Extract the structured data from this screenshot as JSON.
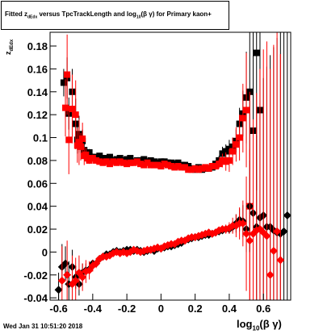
{
  "title": "Fitted z_dEdx versus TpcTrackLength and log10(βγ) for Primary kaon+",
  "title_parts": {
    "pre": "Fitted  z",
    "sub1": "dEdx",
    "mid": " versus TpcTrackLength and log",
    "sub2": "10",
    "post": "(β γ) for Primary kaon+"
  },
  "footer": "Wed Jan 31 10:51:20 2018",
  "axes": {
    "x_title_pre": "log",
    "x_title_sub": "10",
    "x_title_post": "(β γ)",
    "y_title": "z_dEdx",
    "y_title_pre": "z",
    "y_title_sub": "dEdx"
  },
  "colors": {
    "series_black": "#000000",
    "series_red": "#ff0000",
    "frame": "#000000"
  },
  "chart_data": {
    "type": "scatter",
    "xlim": [
      -0.65,
      0.76
    ],
    "ylim": [
      -0.042,
      0.192
    ],
    "x_ticks": [
      -0.6,
      -0.4,
      -0.2,
      0,
      0.2,
      0.4,
      0.6
    ],
    "x_tick_labels": [
      "-0.6",
      "-0.4",
      "-0.2",
      "0",
      "0.2",
      "0.4",
      "0.6"
    ],
    "y_ticks": [
      -0.04,
      -0.02,
      0,
      0.02,
      0.04,
      0.06,
      0.08,
      0.1,
      0.12,
      0.14,
      0.16,
      0.18
    ],
    "y_tick_labels": [
      "-0.04",
      "-0.02",
      "0",
      "0.02",
      "0.04",
      "0.06",
      "0.08",
      "0.1",
      "0.12",
      "0.14",
      "0.16",
      "0.18"
    ],
    "grid": false,
    "series": [
      {
        "color": "#000000",
        "marker": "square",
        "x": [
          -0.57,
          -0.55,
          -0.54,
          -0.52,
          -0.5,
          -0.49,
          -0.48,
          -0.47,
          -0.46,
          -0.45,
          -0.44,
          -0.43,
          -0.42,
          -0.4,
          -0.38,
          -0.36,
          -0.34,
          -0.32,
          -0.3,
          -0.28,
          -0.26,
          -0.24,
          -0.22,
          -0.2,
          -0.18,
          -0.16,
          -0.14,
          -0.12,
          -0.1,
          -0.08,
          -0.06,
          -0.04,
          -0.02,
          0,
          0.02,
          0.04,
          0.06,
          0.08,
          0.1,
          0.12,
          0.14,
          0.16,
          0.18,
          0.2,
          0.22,
          0.24,
          0.26,
          0.28,
          0.3,
          0.32,
          0.34,
          0.36,
          0.38,
          0.4,
          0.42,
          0.44,
          0.46,
          0.48,
          0.5,
          0.52,
          0.54,
          0.56,
          0.58
        ],
        "y": [
          0.148,
          0.152,
          0.121,
          0.14,
          0.112,
          0.098,
          0.103,
          0.094,
          0.097,
          0.089,
          0.087,
          0.085,
          0.087,
          0.083,
          0.083,
          0.084,
          0.082,
          0.082,
          0.083,
          0.08,
          0.081,
          0.082,
          0.08,
          0.081,
          0.082,
          0.079,
          0.08,
          0.08,
          0.081,
          0.079,
          0.08,
          0.079,
          0.078,
          0.079,
          0.079,
          0.078,
          0.078,
          0.077,
          0.078,
          0.076,
          0.076,
          0.075,
          0.073,
          0.072,
          0.074,
          0.072,
          0.073,
          0.073,
          0.074,
          0.077,
          0.08,
          0.086,
          0.088,
          0.09,
          0.092,
          0.097,
          0.112,
          0.121,
          0.135,
          0.14,
          0.106,
          0.174,
          0.124
        ],
        "err": [
          0.012,
          0.018,
          0.014,
          0.02,
          0.022,
          0.012,
          0.016,
          0.008,
          0.01,
          0.006,
          0.004,
          0.003,
          0.003,
          0.003,
          0.002,
          0.002,
          0.002,
          0.002,
          0.002,
          0.002,
          0.002,
          0.002,
          0.002,
          0.002,
          0.002,
          0.002,
          0.002,
          0.002,
          0.002,
          0.002,
          0.002,
          0.002,
          0.002,
          0.002,
          0.002,
          0.002,
          0.002,
          0.002,
          0.002,
          0.002,
          0.002,
          0.002,
          0.002,
          0.002,
          0.002,
          0.002,
          0.002,
          0.002,
          0.002,
          0.003,
          0.004,
          0.006,
          0.006,
          0.008,
          0.008,
          0.01,
          0.014,
          0.02,
          0.04,
          0.06,
          0.09,
          0.12,
          0.16
        ]
      },
      {
        "color": "#ff0000",
        "marker": "square",
        "x": [
          -0.56,
          -0.55,
          -0.54,
          -0.52,
          -0.5,
          -0.49,
          -0.48,
          -0.47,
          -0.46,
          -0.45,
          -0.44,
          -0.43,
          -0.42,
          -0.4,
          -0.38,
          -0.36,
          -0.34,
          -0.32,
          -0.3,
          -0.28,
          -0.26,
          -0.24,
          -0.22,
          -0.2,
          -0.18,
          -0.16,
          -0.14,
          -0.12,
          -0.1,
          -0.08,
          -0.06,
          -0.04,
          -0.02,
          0,
          0.02,
          0.04,
          0.06,
          0.08,
          0.1,
          0.12,
          0.14,
          0.16,
          0.18,
          0.2,
          0.22,
          0.24,
          0.26,
          0.28,
          0.3,
          0.32,
          0.34,
          0.36,
          0.38,
          0.4,
          0.42,
          0.44,
          0.46,
          0.48,
          0.5,
          0.52
        ],
        "y": [
          0.126,
          0.155,
          0.098,
          0.125,
          0.12,
          0.093,
          0.096,
          0.092,
          0.099,
          0.084,
          0.085,
          0.082,
          0.08,
          0.082,
          0.08,
          0.079,
          0.078,
          0.079,
          0.077,
          0.079,
          0.078,
          0.079,
          0.078,
          0.077,
          0.078,
          0.078,
          0.079,
          0.077,
          0.076,
          0.078,
          0.076,
          0.076,
          0.076,
          0.075,
          0.077,
          0.076,
          0.075,
          0.074,
          0.075,
          0.074,
          0.074,
          0.072,
          0.072,
          0.073,
          0.072,
          0.073,
          0.074,
          0.073,
          0.075,
          0.075,
          0.077,
          0.08,
          0.079,
          0.08,
          0.088,
          0.094,
          0.1,
          0.117,
          0.124,
          0.04
        ],
        "err": [
          0.025,
          0.035,
          0.03,
          0.03,
          0.03,
          0.015,
          0.02,
          0.012,
          0.014,
          0.008,
          0.006,
          0.004,
          0.003,
          0.003,
          0.002,
          0.002,
          0.002,
          0.002,
          0.002,
          0.002,
          0.002,
          0.002,
          0.002,
          0.002,
          0.002,
          0.002,
          0.002,
          0.002,
          0.002,
          0.002,
          0.002,
          0.002,
          0.002,
          0.002,
          0.002,
          0.002,
          0.002,
          0.002,
          0.002,
          0.002,
          0.002,
          0.002,
          0.002,
          0.002,
          0.002,
          0.002,
          0.002,
          0.002,
          0.003,
          0.003,
          0.004,
          0.006,
          0.008,
          0.01,
          0.012,
          0.015,
          0.02,
          0.03,
          0.05,
          0.1
        ]
      },
      {
        "color": "#000000",
        "marker": "diamond",
        "x": [
          -0.6,
          -0.58,
          -0.56,
          -0.54,
          -0.52,
          -0.5,
          -0.48,
          -0.46,
          -0.44,
          -0.42,
          -0.4,
          -0.38,
          -0.36,
          -0.34,
          -0.32,
          -0.3,
          -0.28,
          -0.26,
          -0.24,
          -0.22,
          -0.2,
          -0.18,
          -0.16,
          -0.14,
          -0.12,
          -0.1,
          -0.08,
          -0.06,
          -0.04,
          -0.02,
          0,
          0.02,
          0.04,
          0.06,
          0.08,
          0.1,
          0.12,
          0.14,
          0.16,
          0.18,
          0.2,
          0.22,
          0.24,
          0.26,
          0.28,
          0.3,
          0.32,
          0.34,
          0.36,
          0.38,
          0.4,
          0.42,
          0.44,
          0.46,
          0.48,
          0.5,
          0.52,
          0.54,
          0.56,
          0.58,
          0.6,
          0.62,
          0.64,
          0.66,
          0.68,
          0.7,
          0.72,
          0.74
        ],
        "y": [
          -0.033,
          -0.013,
          -0.01,
          -0.028,
          -0.013,
          -0.022,
          -0.028,
          -0.018,
          -0.016,
          -0.015,
          -0.01,
          -0.01,
          -0.006,
          -0.004,
          -0.002,
          -0.002,
          0,
          0.001,
          0.0,
          0.001,
          0.002,
          0.002,
          0.001,
          0.002,
          0.001,
          0.0,
          0.001,
          0.002,
          0.001,
          0.003,
          0.003,
          0.004,
          0.005,
          0.005,
          0.006,
          0.007,
          0.008,
          0.01,
          0.011,
          0.012,
          0.013,
          0.013,
          0.014,
          0.015,
          0.015,
          0.016,
          0.017,
          0.018,
          0.019,
          0.02,
          0.02,
          0.022,
          0.025,
          0.028,
          0.027,
          0.02,
          0.04,
          0.034,
          0.022,
          0.03,
          0.032,
          0.022,
          0.022,
          0.019,
          0.017,
          0.016,
          0.018,
          0.032
        ],
        "err": [
          0.015,
          0.02,
          0.015,
          0.02,
          0.015,
          0.01,
          0.01,
          0.008,
          0.006,
          0.004,
          0.003,
          0.003,
          0.002,
          0.002,
          0.002,
          0.002,
          0.002,
          0.002,
          0.002,
          0.002,
          0.002,
          0.002,
          0.002,
          0.002,
          0.002,
          0.002,
          0.002,
          0.002,
          0.002,
          0.002,
          0.002,
          0.002,
          0.002,
          0.002,
          0.002,
          0.002,
          0.002,
          0.002,
          0.002,
          0.002,
          0.002,
          0.002,
          0.002,
          0.002,
          0.002,
          0.002,
          0.002,
          0.002,
          0.003,
          0.003,
          0.004,
          0.005,
          0.008,
          0.01,
          0.014,
          0.02,
          0.04,
          0.06,
          0.08,
          0.1,
          0.12,
          0.14,
          0.15,
          0.16,
          0.17,
          0.18,
          0.18,
          0.18
        ]
      },
      {
        "color": "#ff0000",
        "marker": "diamond",
        "x": [
          -0.58,
          -0.55,
          -0.52,
          -0.5,
          -0.48,
          -0.46,
          -0.44,
          -0.42,
          -0.4,
          -0.38,
          -0.36,
          -0.34,
          -0.32,
          -0.3,
          -0.28,
          -0.26,
          -0.24,
          -0.22,
          -0.2,
          -0.18,
          -0.16,
          -0.14,
          -0.12,
          -0.1,
          -0.08,
          -0.06,
          -0.04,
          -0.02,
          0,
          0.02,
          0.04,
          0.06,
          0.08,
          0.1,
          0.12,
          0.14,
          0.16,
          0.18,
          0.2,
          0.22,
          0.24,
          0.26,
          0.28,
          0.3,
          0.32,
          0.34,
          0.36,
          0.38,
          0.4,
          0.42,
          0.44,
          0.46,
          0.48,
          0.5,
          0.52,
          0.54,
          0.56,
          0.58,
          0.6,
          0.62,
          0.64,
          0.66,
          0.68,
          0.7
        ],
        "y": [
          -0.025,
          -0.02,
          -0.028,
          -0.025,
          -0.018,
          -0.022,
          -0.017,
          -0.016,
          -0.012,
          -0.01,
          -0.006,
          -0.004,
          -0.004,
          -0.003,
          -0.001,
          0,
          -0.001,
          0.0,
          -0.001,
          0.0,
          0.002,
          0.001,
          0.0,
          0.001,
          0.002,
          0.002,
          0.003,
          0.004,
          0.003,
          0.005,
          0.006,
          0.007,
          0.007,
          0.009,
          0.01,
          0.01,
          0.012,
          0.013,
          0.013,
          0.014,
          0.015,
          0.016,
          0.017,
          0.016,
          0.017,
          0.019,
          0.02,
          0.02,
          0.021,
          0.023,
          0.023,
          0.025,
          0.025,
          0.016,
          0.01,
          0.016,
          0.019,
          0.02,
          0.017,
          0.014,
          -0.02,
          0.001,
          0.018,
          -0.007
        ],
        "err": [
          0.03,
          0.03,
          0.025,
          0.02,
          0.015,
          0.012,
          0.01,
          0.008,
          0.005,
          0.004,
          0.003,
          0.002,
          0.002,
          0.002,
          0.002,
          0.002,
          0.002,
          0.002,
          0.002,
          0.002,
          0.002,
          0.002,
          0.002,
          0.002,
          0.002,
          0.002,
          0.002,
          0.002,
          0.002,
          0.002,
          0.002,
          0.002,
          0.002,
          0.002,
          0.002,
          0.002,
          0.002,
          0.002,
          0.002,
          0.002,
          0.002,
          0.002,
          0.002,
          0.002,
          0.002,
          0.003,
          0.003,
          0.004,
          0.005,
          0.007,
          0.01,
          0.014,
          0.02,
          0.05,
          0.08,
          0.1,
          0.12,
          0.14,
          0.16,
          0.17,
          0.18,
          0.18,
          0.18,
          0.18
        ]
      }
    ]
  }
}
